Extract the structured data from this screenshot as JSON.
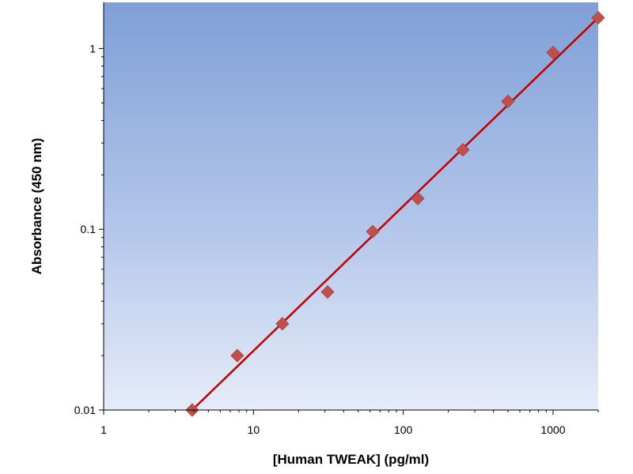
{
  "chart_data": {
    "type": "scatter",
    "title": "",
    "xlabel": "[Human TWEAK] (pg/ml)",
    "ylabel": "Absorbance (450 nm)",
    "xscale": "log",
    "yscale": "log",
    "xlim": [
      1,
      2000
    ],
    "ylim": [
      0.01,
      1.8
    ],
    "x_ticks": [
      "1",
      "10",
      "100",
      "1000"
    ],
    "y_ticks": [
      "0.01",
      "0.1",
      "1"
    ],
    "grid": false,
    "legend": "none",
    "background": "blue vertical gradient",
    "series": [
      {
        "x": [
          3.9,
          7.8,
          15.6,
          31.25,
          62.5,
          125,
          250,
          500,
          1000,
          2000
        ],
        "y": [
          0.01,
          0.02,
          0.03,
          0.045,
          0.097,
          0.148,
          0.275,
          0.51,
          0.95,
          1.48
        ],
        "marker": "diamond",
        "color": "#c0504d"
      }
    ],
    "fit_line": {
      "x": [
        3.9,
        2000
      ],
      "y": [
        0.01,
        1.48
      ],
      "color": "#c00000"
    }
  }
}
